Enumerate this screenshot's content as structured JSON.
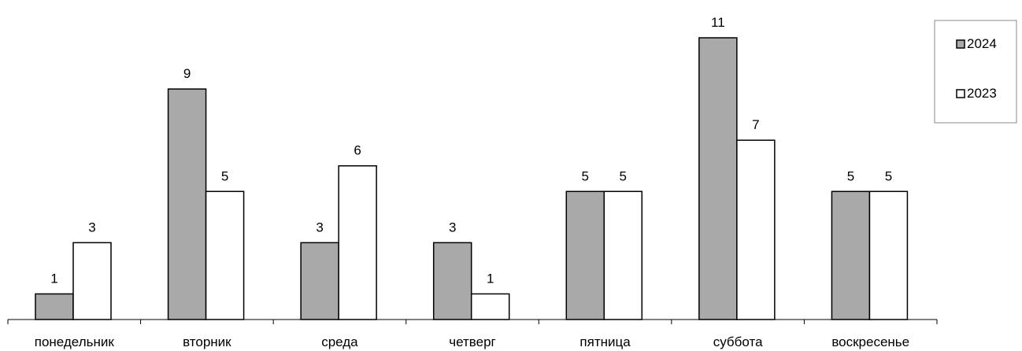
{
  "chart_data": {
    "type": "bar",
    "categories": [
      "понедельник",
      "вторник",
      "среда",
      "четверг",
      "пятница",
      "суббота",
      "воскресенье"
    ],
    "series": [
      {
        "name": "2024",
        "values": [
          1,
          9,
          3,
          3,
          5,
          11,
          5
        ],
        "color": "#a9a9a9"
      },
      {
        "name": "2023",
        "values": [
          3,
          5,
          6,
          1,
          5,
          7,
          5
        ],
        "color": "#ffffff"
      }
    ],
    "ylim": [
      0,
      11
    ],
    "grid": false,
    "legend_position": "top-right",
    "data_labels": true
  }
}
